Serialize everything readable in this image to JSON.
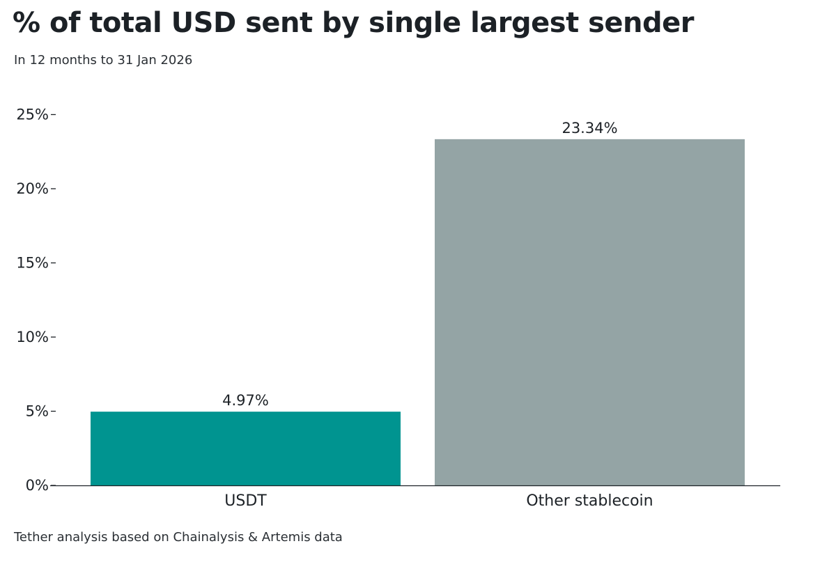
{
  "chart_data": {
    "type": "bar",
    "title": "% of total USD sent by single largest sender",
    "subtitle": "In 12 months to 31 Jan 2026",
    "source": "Tether analysis based on Chainalysis & Artemis data",
    "categories": [
      "USDT",
      "Other stablecoin"
    ],
    "values": [
      4.97,
      23.34
    ],
    "data_labels": [
      "4.97%",
      "23.34%"
    ],
    "colors": [
      "#009490",
      "#94a4a5"
    ],
    "ylim": [
      0,
      25
    ],
    "yticks": [
      0,
      5,
      10,
      15,
      20,
      25
    ],
    "ytick_labels": [
      "0%",
      "5%",
      "10%",
      "15%",
      "20%",
      "25%"
    ],
    "xlabel": "",
    "ylabel": "",
    "grid": false,
    "legend": "none"
  }
}
